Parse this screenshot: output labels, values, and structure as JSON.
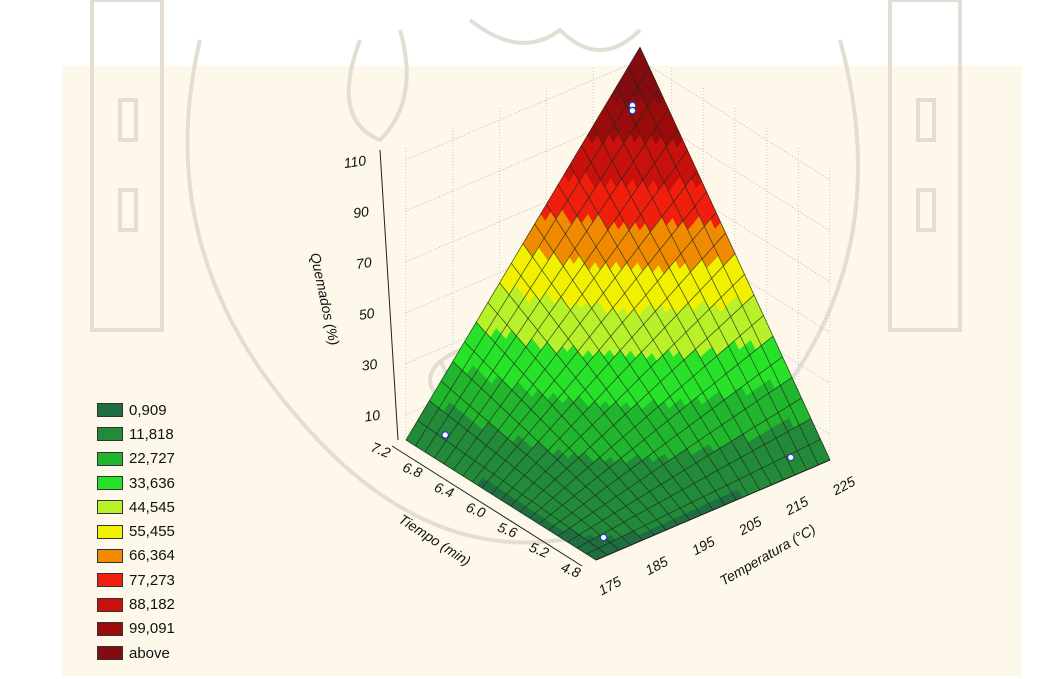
{
  "chart_data": {
    "type": "surface-3d",
    "title": "",
    "xlabel": "Temperatura (°C)",
    "ylabel": "Tiempo (min)",
    "zlabel": "Quemados (%)",
    "x_ticks": [
      "175",
      "185",
      "195",
      "205",
      "215",
      "225"
    ],
    "y_ticks": [
      "4.8",
      "5.2",
      "5.6",
      "6.0",
      "6.4",
      "6.8",
      "7.2"
    ],
    "z_ticks": [
      "10",
      "30",
      "50",
      "70",
      "90",
      "110"
    ],
    "x_range": [
      175,
      225
    ],
    "y_range": [
      4.8,
      7.2
    ],
    "z_range": [
      0,
      115
    ],
    "surface_corners": [
      {
        "temperatura": 175,
        "tiempo": 4.8,
        "quemados": 0
      },
      {
        "temperatura": 225,
        "tiempo": 4.8,
        "quemados": 0
      },
      {
        "temperatura": 175,
        "tiempo": 7.2,
        "quemados": 0
      },
      {
        "temperatura": 225,
        "tiempo": 7.2,
        "quemados": 115
      }
    ],
    "observed_points": [
      {
        "temperatura": 180,
        "tiempo": 5.0,
        "quemados": 1
      },
      {
        "temperatura": 220,
        "tiempo": 5.0,
        "quemados": 1
      },
      {
        "temperatura": 180,
        "tiempo": 7.0,
        "quemados": 2
      },
      {
        "temperatura": 220,
        "tiempo": 7.0,
        "quemados": 100
      },
      {
        "temperatura": 220,
        "tiempo": 7.0,
        "quemados": 98
      }
    ],
    "legend": {
      "position": "bottom-left",
      "levels": [
        "0,909",
        "11,818",
        "22,727",
        "33,636",
        "44,545",
        "55,455",
        "66,364",
        "77,273",
        "88,182",
        "99,091",
        "above"
      ],
      "thresholds": [
        0.909,
        11.818,
        22.727,
        33.636,
        44.545,
        55.455,
        66.364,
        77.273,
        88.182,
        99.091
      ],
      "colors": [
        "#1e6e40",
        "#238a3a",
        "#22b52e",
        "#28e22a",
        "#b8f02a",
        "#f0f000",
        "#f08a00",
        "#f01e0c",
        "#c8100c",
        "#9a0c0c",
        "#820c10"
      ]
    },
    "grid": true
  }
}
